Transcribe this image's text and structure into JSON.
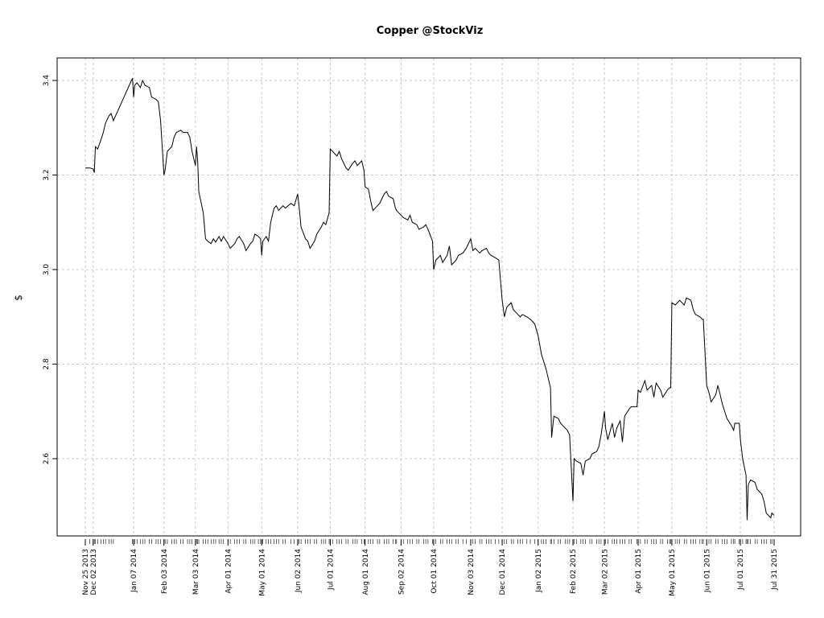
{
  "chart_data": {
    "type": "line",
    "title": "Copper @StockViz",
    "xlabel": "",
    "ylabel": "$",
    "y_ticks": [
      2.6,
      2.8,
      3.0,
      3.2,
      3.4
    ],
    "x_tick_labels": [
      {
        "date": "2013-11-25",
        "label": "Nov 25 2013"
      },
      {
        "date": "2013-12-02",
        "label": "Dec 02 2013"
      },
      {
        "date": "2014-01-07",
        "label": "Jan 07 2014"
      },
      {
        "date": "2014-02-03",
        "label": "Feb 03 2014"
      },
      {
        "date": "2014-03-03",
        "label": "Mar 03 2014"
      },
      {
        "date": "2014-04-01",
        "label": "Apr 01 2014"
      },
      {
        "date": "2014-05-01",
        "label": "May 01 2014"
      },
      {
        "date": "2014-06-02",
        "label": "Jun 02 2014"
      },
      {
        "date": "2014-07-01",
        "label": "Jul 01 2014"
      },
      {
        "date": "2014-08-01",
        "label": "Aug 01 2014"
      },
      {
        "date": "2014-09-02",
        "label": "Sep 02 2014"
      },
      {
        "date": "2014-10-01",
        "label": "Oct 01 2014"
      },
      {
        "date": "2014-11-03",
        "label": "Nov 03 2014"
      },
      {
        "date": "2014-12-01",
        "label": "Dec 01 2014"
      },
      {
        "date": "2015-01-02",
        "label": "Jan 02 2015"
      },
      {
        "date": "2015-02-02",
        "label": "Feb 02 2015"
      },
      {
        "date": "2015-03-02",
        "label": "Mar 02 2015"
      },
      {
        "date": "2015-04-01",
        "label": "Apr 01 2015"
      },
      {
        "date": "2015-05-01",
        "label": "May 01 2015"
      },
      {
        "date": "2015-06-01",
        "label": "Jun 01 2015"
      },
      {
        "date": "2015-07-01",
        "label": "Jul 01 2015"
      },
      {
        "date": "2015-07-31",
        "label": "Jul 31 2015"
      }
    ],
    "grid": true,
    "series": [
      {
        "points": [
          [
            "2013-11-25",
            3.215
          ],
          [
            "2013-11-29",
            3.215
          ],
          [
            "2013-12-02",
            3.213
          ],
          [
            "2013-12-03",
            3.205
          ],
          [
            "2013-12-04",
            3.26
          ],
          [
            "2013-12-06",
            3.255
          ],
          [
            "2013-12-09",
            3.275
          ],
          [
            "2013-12-11",
            3.29
          ],
          [
            "2013-12-13",
            3.31
          ],
          [
            "2013-12-16",
            3.325
          ],
          [
            "2013-12-18",
            3.33
          ],
          [
            "2013-12-20",
            3.315
          ],
          [
            "2014-01-06",
            3.405
          ],
          [
            "2014-01-07",
            3.365
          ],
          [
            "2014-01-08",
            3.39
          ],
          [
            "2014-01-10",
            3.395
          ],
          [
            "2014-01-13",
            3.385
          ],
          [
            "2014-01-15",
            3.4
          ],
          [
            "2014-01-17",
            3.39
          ],
          [
            "2014-01-21",
            3.385
          ],
          [
            "2014-01-23",
            3.365
          ],
          [
            "2014-01-27",
            3.36
          ],
          [
            "2014-01-29",
            3.355
          ],
          [
            "2014-01-31",
            3.315
          ],
          [
            "2014-02-03",
            3.2
          ],
          [
            "2014-02-04",
            3.21
          ],
          [
            "2014-02-06",
            3.25
          ],
          [
            "2014-02-10",
            3.26
          ],
          [
            "2014-02-12",
            3.28
          ],
          [
            "2014-02-14",
            3.29
          ],
          [
            "2014-02-18",
            3.295
          ],
          [
            "2014-02-20",
            3.29
          ],
          [
            "2014-02-24",
            3.29
          ],
          [
            "2014-02-26",
            3.28
          ],
          [
            "2014-02-28",
            3.25
          ],
          [
            "2014-03-03",
            3.22
          ],
          [
            "2014-03-04",
            3.26
          ],
          [
            "2014-03-05",
            3.23
          ],
          [
            "2014-03-06",
            3.165
          ],
          [
            "2014-03-10",
            3.12
          ],
          [
            "2014-03-12",
            3.065
          ],
          [
            "2014-03-14",
            3.06
          ],
          [
            "2014-03-17",
            3.055
          ],
          [
            "2014-03-19",
            3.065
          ],
          [
            "2014-03-21",
            3.058
          ],
          [
            "2014-03-24",
            3.07
          ],
          [
            "2014-03-26",
            3.06
          ],
          [
            "2014-03-28",
            3.07
          ],
          [
            "2014-04-01",
            3.055
          ],
          [
            "2014-04-03",
            3.045
          ],
          [
            "2014-04-07",
            3.055
          ],
          [
            "2014-04-09",
            3.065
          ],
          [
            "2014-04-11",
            3.07
          ],
          [
            "2014-04-15",
            3.055
          ],
          [
            "2014-04-17",
            3.04
          ],
          [
            "2014-04-21",
            3.055
          ],
          [
            "2014-04-23",
            3.06
          ],
          [
            "2014-04-25",
            3.075
          ],
          [
            "2014-04-28",
            3.07
          ],
          [
            "2014-04-30",
            3.065
          ],
          [
            "2014-05-01",
            3.03
          ],
          [
            "2014-05-02",
            3.06
          ],
          [
            "2014-05-05",
            3.07
          ],
          [
            "2014-05-07",
            3.06
          ],
          [
            "2014-05-09",
            3.1
          ],
          [
            "2014-05-12",
            3.13
          ],
          [
            "2014-05-14",
            3.135
          ],
          [
            "2014-05-16",
            3.125
          ],
          [
            "2014-05-20",
            3.135
          ],
          [
            "2014-05-22",
            3.13
          ],
          [
            "2014-05-27",
            3.14
          ],
          [
            "2014-05-30",
            3.135
          ],
          [
            "2014-06-02",
            3.16
          ],
          [
            "2014-06-03",
            3.14
          ],
          [
            "2014-06-05",
            3.09
          ],
          [
            "2014-06-09",
            3.065
          ],
          [
            "2014-06-11",
            3.06
          ],
          [
            "2014-06-13",
            3.045
          ],
          [
            "2014-06-17",
            3.06
          ],
          [
            "2014-06-19",
            3.075
          ],
          [
            "2014-06-23",
            3.09
          ],
          [
            "2014-06-25",
            3.1
          ],
          [
            "2014-06-27",
            3.095
          ],
          [
            "2014-06-30",
            3.12
          ],
          [
            "2014-07-01",
            3.255
          ],
          [
            "2014-07-03",
            3.25
          ],
          [
            "2014-07-07",
            3.24
          ],
          [
            "2014-07-09",
            3.25
          ],
          [
            "2014-07-11",
            3.235
          ],
          [
            "2014-07-15",
            3.215
          ],
          [
            "2014-07-17",
            3.21
          ],
          [
            "2014-07-21",
            3.225
          ],
          [
            "2014-07-23",
            3.23
          ],
          [
            "2014-07-25",
            3.22
          ],
          [
            "2014-07-29",
            3.23
          ],
          [
            "2014-07-31",
            3.21
          ],
          [
            "2014-08-01",
            3.175
          ],
          [
            "2014-08-04",
            3.17
          ],
          [
            "2014-08-06",
            3.145
          ],
          [
            "2014-08-08",
            3.125
          ],
          [
            "2014-08-12",
            3.135
          ],
          [
            "2014-08-14",
            3.14
          ],
          [
            "2014-08-18",
            3.16
          ],
          [
            "2014-08-20",
            3.165
          ],
          [
            "2014-08-22",
            3.155
          ],
          [
            "2014-08-26",
            3.15
          ],
          [
            "2014-08-28",
            3.13
          ],
          [
            "2014-08-29",
            3.125
          ],
          [
            "2014-09-02",
            3.115
          ],
          [
            "2014-09-04",
            3.11
          ],
          [
            "2014-09-08",
            3.105
          ],
          [
            "2014-09-10",
            3.115
          ],
          [
            "2014-09-12",
            3.1
          ],
          [
            "2014-09-16",
            3.095
          ],
          [
            "2014-09-18",
            3.085
          ],
          [
            "2014-09-22",
            3.09
          ],
          [
            "2014-09-24",
            3.095
          ],
          [
            "2014-09-26",
            3.085
          ],
          [
            "2014-09-30",
            3.06
          ],
          [
            "2014-10-01",
            3.0
          ],
          [
            "2014-10-03",
            3.02
          ],
          [
            "2014-10-07",
            3.03
          ],
          [
            "2014-10-09",
            3.015
          ],
          [
            "2014-10-13",
            3.03
          ],
          [
            "2014-10-15",
            3.05
          ],
          [
            "2014-10-17",
            3.01
          ],
          [
            "2014-10-21",
            3.02
          ],
          [
            "2014-10-23",
            3.03
          ],
          [
            "2014-10-27",
            3.035
          ],
          [
            "2014-10-30",
            3.045
          ],
          [
            "2014-11-03",
            3.065
          ],
          [
            "2014-11-05",
            3.04
          ],
          [
            "2014-11-07",
            3.045
          ],
          [
            "2014-11-11",
            3.035
          ],
          [
            "2014-11-13",
            3.04
          ],
          [
            "2014-11-17",
            3.045
          ],
          [
            "2014-11-19",
            3.035
          ],
          [
            "2014-11-21",
            3.03
          ],
          [
            "2014-11-25",
            3.025
          ],
          [
            "2014-11-28",
            3.02
          ],
          [
            "2014-12-01",
            2.935
          ],
          [
            "2014-12-03",
            2.9
          ],
          [
            "2014-12-05",
            2.92
          ],
          [
            "2014-12-09",
            2.93
          ],
          [
            "2014-12-11",
            2.915
          ],
          [
            "2014-12-15",
            2.905
          ],
          [
            "2014-12-17",
            2.9
          ],
          [
            "2014-12-19",
            2.905
          ],
          [
            "2014-12-23",
            2.9
          ],
          [
            "2014-12-26",
            2.895
          ],
          [
            "2014-12-30",
            2.885
          ],
          [
            "2015-01-02",
            2.86
          ],
          [
            "2015-01-05",
            2.82
          ],
          [
            "2015-01-07",
            2.805
          ],
          [
            "2015-01-09",
            2.79
          ],
          [
            "2015-01-13",
            2.75
          ],
          [
            "2015-01-14",
            2.645
          ],
          [
            "2015-01-16",
            2.69
          ],
          [
            "2015-01-20",
            2.685
          ],
          [
            "2015-01-22",
            2.675
          ],
          [
            "2015-01-26",
            2.665
          ],
          [
            "2015-01-28",
            2.66
          ],
          [
            "2015-01-30",
            2.65
          ],
          [
            "2015-02-02",
            2.51
          ],
          [
            "2015-02-03",
            2.6
          ],
          [
            "2015-02-05",
            2.595
          ],
          [
            "2015-02-09",
            2.59
          ],
          [
            "2015-02-11",
            2.565
          ],
          [
            "2015-02-13",
            2.595
          ],
          [
            "2015-02-17",
            2.6
          ],
          [
            "2015-02-19",
            2.61
          ],
          [
            "2015-02-23",
            2.615
          ],
          [
            "2015-02-25",
            2.625
          ],
          [
            "2015-02-27",
            2.65
          ],
          [
            "2015-03-02",
            2.7
          ],
          [
            "2015-03-03",
            2.665
          ],
          [
            "2015-03-05",
            2.64
          ],
          [
            "2015-03-09",
            2.675
          ],
          [
            "2015-03-11",
            2.645
          ],
          [
            "2015-03-13",
            2.665
          ],
          [
            "2015-03-16",
            2.68
          ],
          [
            "2015-03-18",
            2.635
          ],
          [
            "2015-03-20",
            2.69
          ],
          [
            "2015-03-24",
            2.705
          ],
          [
            "2015-03-26",
            2.71
          ],
          [
            "2015-03-31",
            2.71
          ],
          [
            "2015-04-01",
            2.745
          ],
          [
            "2015-04-03",
            2.74
          ],
          [
            "2015-04-07",
            2.765
          ],
          [
            "2015-04-09",
            2.745
          ],
          [
            "2015-04-13",
            2.755
          ],
          [
            "2015-04-15",
            2.73
          ],
          [
            "2015-04-17",
            2.76
          ],
          [
            "2015-04-21",
            2.745
          ],
          [
            "2015-04-23",
            2.73
          ],
          [
            "2015-04-27",
            2.745
          ],
          [
            "2015-04-29",
            2.75
          ],
          [
            "2015-04-30",
            2.75
          ],
          [
            "2015-05-01",
            2.93
          ],
          [
            "2015-05-04",
            2.925
          ],
          [
            "2015-05-06",
            2.93
          ],
          [
            "2015-05-08",
            2.935
          ],
          [
            "2015-05-12",
            2.925
          ],
          [
            "2015-05-14",
            2.94
          ],
          [
            "2015-05-18",
            2.935
          ],
          [
            "2015-05-20",
            2.915
          ],
          [
            "2015-05-22",
            2.905
          ],
          [
            "2015-05-26",
            2.9
          ],
          [
            "2015-05-28",
            2.895
          ],
          [
            "2015-05-29",
            2.895
          ],
          [
            "2015-06-01",
            2.755
          ],
          [
            "2015-06-03",
            2.74
          ],
          [
            "2015-06-05",
            2.72
          ],
          [
            "2015-06-09",
            2.735
          ],
          [
            "2015-06-11",
            2.755
          ],
          [
            "2015-06-15",
            2.715
          ],
          [
            "2015-06-17",
            2.7
          ],
          [
            "2015-06-19",
            2.685
          ],
          [
            "2015-06-23",
            2.67
          ],
          [
            "2015-06-25",
            2.66
          ],
          [
            "2015-06-26",
            2.675
          ],
          [
            "2015-06-30",
            2.675
          ],
          [
            "2015-07-01",
            2.64
          ],
          [
            "2015-07-03",
            2.6
          ],
          [
            "2015-07-06",
            2.565
          ],
          [
            "2015-07-07",
            2.47
          ],
          [
            "2015-07-08",
            2.545
          ],
          [
            "2015-07-10",
            2.555
          ],
          [
            "2015-07-14",
            2.55
          ],
          [
            "2015-07-16",
            2.535
          ],
          [
            "2015-07-20",
            2.525
          ],
          [
            "2015-07-22",
            2.51
          ],
          [
            "2015-07-24",
            2.485
          ],
          [
            "2015-07-28",
            2.475
          ],
          [
            "2015-07-29",
            2.485
          ],
          [
            "2015-07-31",
            2.48
          ]
        ]
      }
    ]
  }
}
